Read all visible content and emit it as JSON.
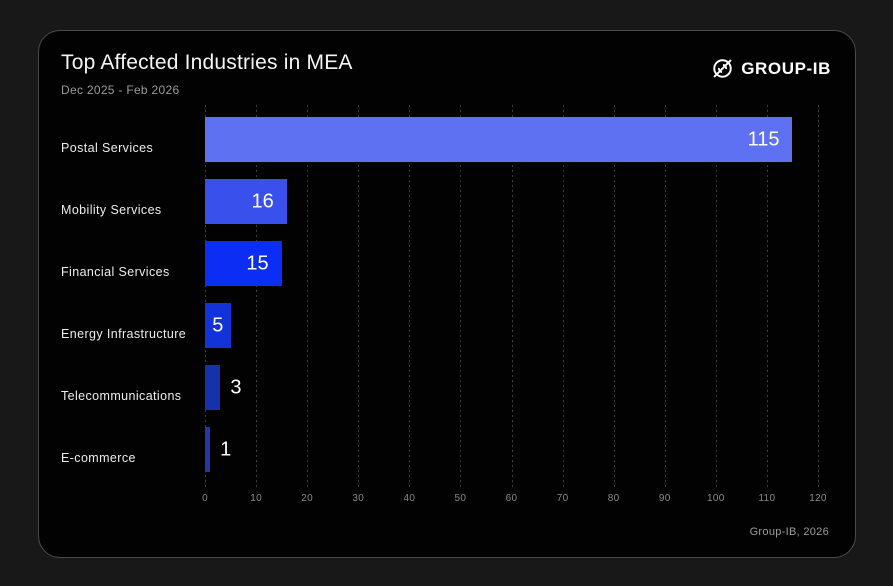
{
  "card": {
    "title": "Top Affected Industries in MEA",
    "subtitle": "Dec 2025 - Feb 2026",
    "brand": {
      "name": "GROUP-IB"
    },
    "footer": "Group-IB, 2026"
  },
  "chart_data": {
    "type": "bar",
    "orientation": "horizontal",
    "title": "Top Affected Industries in MEA",
    "subtitle": "Dec 2025 - Feb 2026",
    "categories": [
      "Postal Services",
      "Mobility Services",
      "Financial Services",
      "Energy Infrastructure",
      "Telecommunications",
      "E-commerce"
    ],
    "values": [
      115,
      16,
      15,
      5,
      3,
      1
    ],
    "bar_colors": [
      "#5e71f2",
      "#3a50ec",
      "#0c2ef4",
      "#1133d8",
      "#1631ac",
      "#2437a8"
    ],
    "value_label_placement": [
      "inside-right",
      "inside-right",
      "inside-right",
      "inside-center",
      "outside",
      "outside"
    ],
    "xlim": [
      0,
      120
    ],
    "x_ticks": [
      0,
      10,
      20,
      30,
      40,
      50,
      60,
      70,
      80,
      90,
      100,
      110,
      120
    ],
    "xlabel": "",
    "ylabel": "",
    "grid": "vertical-dashed",
    "legend": "none",
    "colors": {
      "background": "#020202",
      "outer_background": "#181818",
      "gridline": "#3c3c3c",
      "value_label": "#ffffff",
      "category_label": "#ececec",
      "tick_label": "#8a8a8a"
    }
  }
}
